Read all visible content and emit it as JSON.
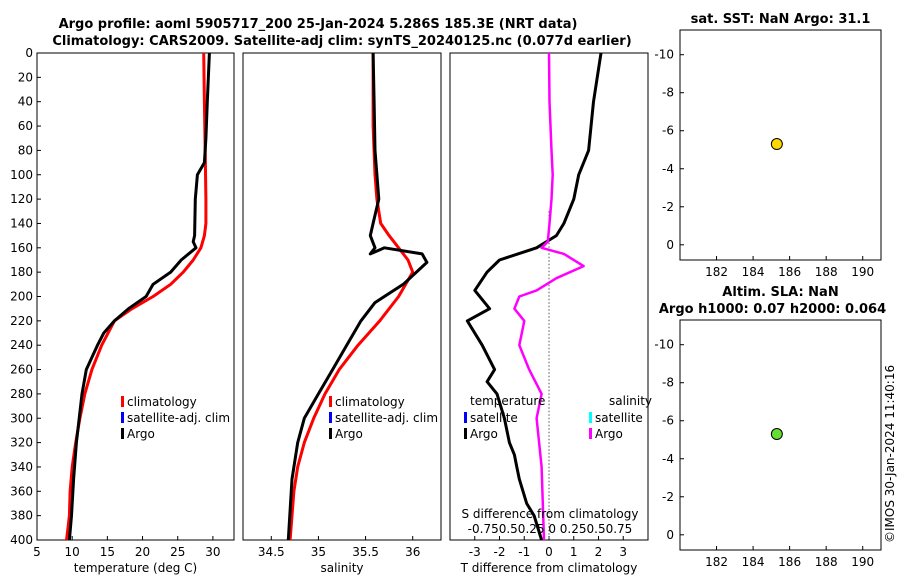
{
  "title": {
    "line1": "Argo profile: aoml 5905717_200 25-Jan-2024 5.286S 185.3E (NRT data)",
    "line2": "Climatology: CARS2009. Satellite-adj clim: synTS_20240125.nc (0.077d earlier)"
  },
  "watermark": "©IMOS 30-Jan-2024 11:40:16",
  "colors": {
    "climatology": "#ff0000",
    "satellite": "#0000ff",
    "satellite_sal": "#00ffff",
    "argo": "#000000",
    "argo_sal_diff": "#ff00ff",
    "sst_marker": "#ffd700",
    "sla_marker": "#66dd33"
  },
  "chart_data": [
    {
      "id": "temperature",
      "type": "line",
      "xlabel": "temperature (deg C)",
      "xlim": [
        5,
        33
      ],
      "xticks": [
        5,
        10,
        15,
        20,
        25,
        30
      ],
      "ylim": [
        0,
        400
      ],
      "yticks": [
        0,
        20,
        40,
        60,
        80,
        100,
        120,
        140,
        160,
        180,
        200,
        220,
        240,
        260,
        280,
        300,
        320,
        340,
        360,
        380,
        400
      ],
      "legend": [
        "climatology",
        "satellite-adj. clim",
        "Argo"
      ],
      "series": [
        {
          "name": "climatology",
          "color": "#ff0000",
          "x": [
            28.7,
            28.8,
            28.9,
            29.0,
            29.0,
            28.8,
            28.3,
            27.2,
            25.8,
            24.0,
            21.5,
            18.5,
            16.0,
            14.2,
            12.8,
            11.8,
            11.1,
            10.5,
            10.0,
            9.7,
            9.6,
            9.4,
            9.2
          ],
          "y": [
            0,
            40,
            80,
            120,
            140,
            150,
            160,
            170,
            180,
            190,
            200,
            210,
            220,
            240,
            260,
            280,
            300,
            320,
            340,
            360,
            380,
            390,
            400
          ]
        },
        {
          "name": "Argo",
          "color": "#000000",
          "x": [
            29.5,
            29.2,
            29.0,
            28.8,
            27.8,
            27.5,
            27.4,
            27.2,
            27.6,
            25.5,
            24.0,
            21.5,
            20.5,
            18.0,
            16.0,
            14.5,
            13.6,
            12.8,
            12.0,
            11.4,
            11.0,
            10.6,
            10.2,
            9.9,
            9.6
          ],
          "y": [
            0,
            40,
            70,
            90,
            100,
            120,
            150,
            155,
            160,
            170,
            180,
            190,
            200,
            210,
            220,
            230,
            240,
            250,
            260,
            280,
            300,
            320,
            350,
            380,
            400
          ]
        }
      ]
    },
    {
      "id": "salinity",
      "type": "line",
      "xlabel": "salinity",
      "xlim": [
        34.2,
        36.3
      ],
      "xticks": [
        34.5,
        35,
        35.5,
        36
      ],
      "ylim": [
        0,
        400
      ],
      "legend": [
        "climatology",
        "satellite-adj. clim",
        "Argo"
      ],
      "series": [
        {
          "name": "climatology",
          "color": "#ff0000",
          "x": [
            35.58,
            35.58,
            35.6,
            35.62,
            35.66,
            35.75,
            35.85,
            35.95,
            36.0,
            35.85,
            35.65,
            35.42,
            35.22,
            35.07,
            34.95,
            34.85,
            34.78,
            34.74,
            34.72,
            34.7
          ],
          "y": [
            0,
            60,
            100,
            120,
            140,
            150,
            160,
            170,
            180,
            200,
            220,
            240,
            260,
            280,
            300,
            320,
            340,
            360,
            380,
            400
          ]
        },
        {
          "name": "Argo",
          "color": "#000000",
          "x": [
            35.58,
            35.59,
            35.6,
            35.62,
            35.64,
            35.58,
            35.55,
            35.6,
            35.55,
            35.7,
            36.1,
            36.15,
            35.9,
            35.6,
            35.45,
            35.3,
            35.15,
            35.0,
            34.85,
            34.78,
            34.72,
            34.68
          ],
          "y": [
            0,
            40,
            80,
            100,
            120,
            140,
            150,
            160,
            165,
            160,
            165,
            172,
            190,
            205,
            220,
            240,
            260,
            280,
            300,
            320,
            350,
            400
          ]
        }
      ]
    },
    {
      "id": "difference",
      "type": "line",
      "xlabel": "T difference from climatology",
      "top_label": "S difference from climatology",
      "top_ticks": "-0.750.50.25 0  0.250.50.75",
      "xlim": [
        -4,
        4
      ],
      "xticks": [
        -3,
        -2,
        -1,
        0,
        1,
        2,
        3
      ],
      "ylim": [
        0,
        400
      ],
      "legend_temperature_title": "temperature",
      "legend_salinity_title": "salinity",
      "legend": [
        "satellite",
        "Argo",
        "satellite",
        "Argo"
      ],
      "series": [
        {
          "name": "T difference (Argo)",
          "color": "#000000",
          "x": [
            2.1,
            1.8,
            1.6,
            1.2,
            1.0,
            0.6,
            0.3,
            -0.5,
            -2.0,
            -2.5,
            -3.0,
            -2.4,
            -3.3,
            -2.7,
            -2.2,
            -2.5,
            -2.1,
            -1.8,
            -1.6,
            -1.4,
            -1.3,
            -1.2,
            -0.9,
            -0.6,
            -0.3
          ],
          "y": [
            0,
            40,
            80,
            100,
            120,
            140,
            150,
            160,
            170,
            180,
            195,
            210,
            220,
            240,
            260,
            270,
            280,
            300,
            320,
            330,
            340,
            350,
            370,
            380,
            400
          ]
        },
        {
          "name": "S difference (Argo)",
          "color": "#ff00ff",
          "x": [
            0,
            0.02,
            0.1,
            0.15,
            0.1,
            0.02,
            -0.05,
            -0.3,
            0.6,
            1.4,
            0.3,
            -0.5,
            -1.2,
            -1.4,
            -1.0,
            -1.2,
            -0.8,
            -0.3,
            -0.5,
            -0.3,
            -0.25,
            -0.2
          ],
          "y": [
            0,
            40,
            80,
            100,
            120,
            140,
            155,
            160,
            165,
            175,
            185,
            195,
            200,
            210,
            220,
            240,
            260,
            280,
            300,
            340,
            370,
            400
          ]
        }
      ]
    },
    {
      "id": "sst",
      "type": "scatter",
      "title": "sat. SST: NaN Argo: 31.1",
      "xlim": [
        180,
        191
      ],
      "xticks": [
        182,
        184,
        186,
        188,
        190
      ],
      "ylim": [
        -11.3,
        0.8
      ],
      "yticks": [
        0,
        -2,
        -4,
        -6,
        -8,
        -10
      ],
      "points": [
        {
          "x": 185.3,
          "y": -5.3,
          "color": "#ffd700"
        }
      ]
    },
    {
      "id": "sla",
      "type": "scatter",
      "title": "Altim. SLA: NaN",
      "subtitle": "Argo h1000: 0.07 h2000: 0.064",
      "xlim": [
        180,
        191
      ],
      "xticks": [
        182,
        184,
        186,
        188,
        190
      ],
      "ylim": [
        -11.3,
        0.8
      ],
      "yticks": [
        0,
        -2,
        -4,
        -6,
        -8,
        -10
      ],
      "points": [
        {
          "x": 185.3,
          "y": -5.3,
          "color": "#66dd33"
        }
      ]
    }
  ]
}
